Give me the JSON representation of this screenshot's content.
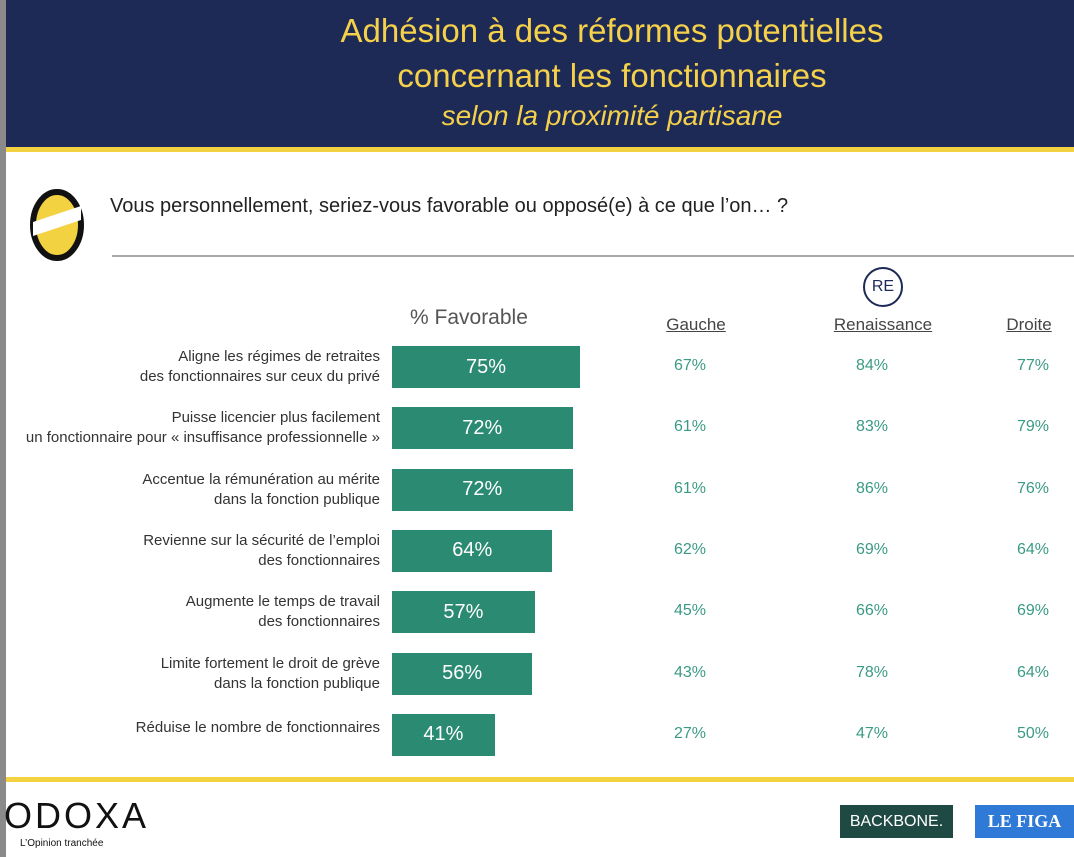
{
  "header": {
    "title": "Adhésion à des réformes potentielles\nconcernant les fonctionnaires",
    "subtitle": "selon la proximité partisane"
  },
  "question": "Vous personnellement, seriez-vous favorable ou opposé(e) à ce que l’on… ?",
  "chart_data": {
    "type": "bar",
    "orientation": "horizontal",
    "title": "% Favorable",
    "categories": [
      "Aligne les régimes de retraites\ndes fonctionnaires sur ceux du privé",
      "Puisse licencier plus facilement\nun fonctionnaire pour « insuffisance professionnelle »",
      "Accentue la rémunération au mérite\ndans la fonction publique",
      "Revienne sur la sécurité de l’emploi\ndes fonctionnaires",
      "Augmente le temps de travail\ndes fonctionnaires",
      "Limite fortement le droit de grève\ndans la fonction publique",
      "Réduise le nombre de fonctionnaires"
    ],
    "values": [
      75,
      72,
      72,
      64,
      57,
      56,
      41
    ],
    "value_labels": [
      "75%",
      "72%",
      "72%",
      "64%",
      "57%",
      "56%",
      "41%"
    ],
    "color": "#2a8a72",
    "xlim": [
      0,
      100
    ],
    "columns": [
      {
        "name": "Gauche",
        "values": [
          67,
          61,
          61,
          62,
          45,
          43,
          27
        ],
        "value_labels": [
          "67%",
          "61%",
          "61%",
          "62%",
          "45%",
          "43%",
          "27%"
        ]
      },
      {
        "name": "Renaissance",
        "logo": "RE",
        "values": [
          84,
          83,
          86,
          69,
          66,
          78,
          47
        ],
        "value_labels": [
          "84%",
          "83%",
          "86%",
          "69%",
          "66%",
          "78%",
          "47%"
        ]
      },
      {
        "name": "Droite",
        "values": [
          77,
          79,
          76,
          64,
          69,
          64,
          50
        ],
        "value_labels": [
          "77%",
          "79%",
          "76%",
          "64%",
          "69%",
          "64%",
          "50%"
        ]
      }
    ]
  },
  "footer": {
    "brand": "ODOXA",
    "tagline": "L’Opinion tranchée",
    "partner1": "BACKBONE.",
    "partner2": "LE FIGA"
  }
}
